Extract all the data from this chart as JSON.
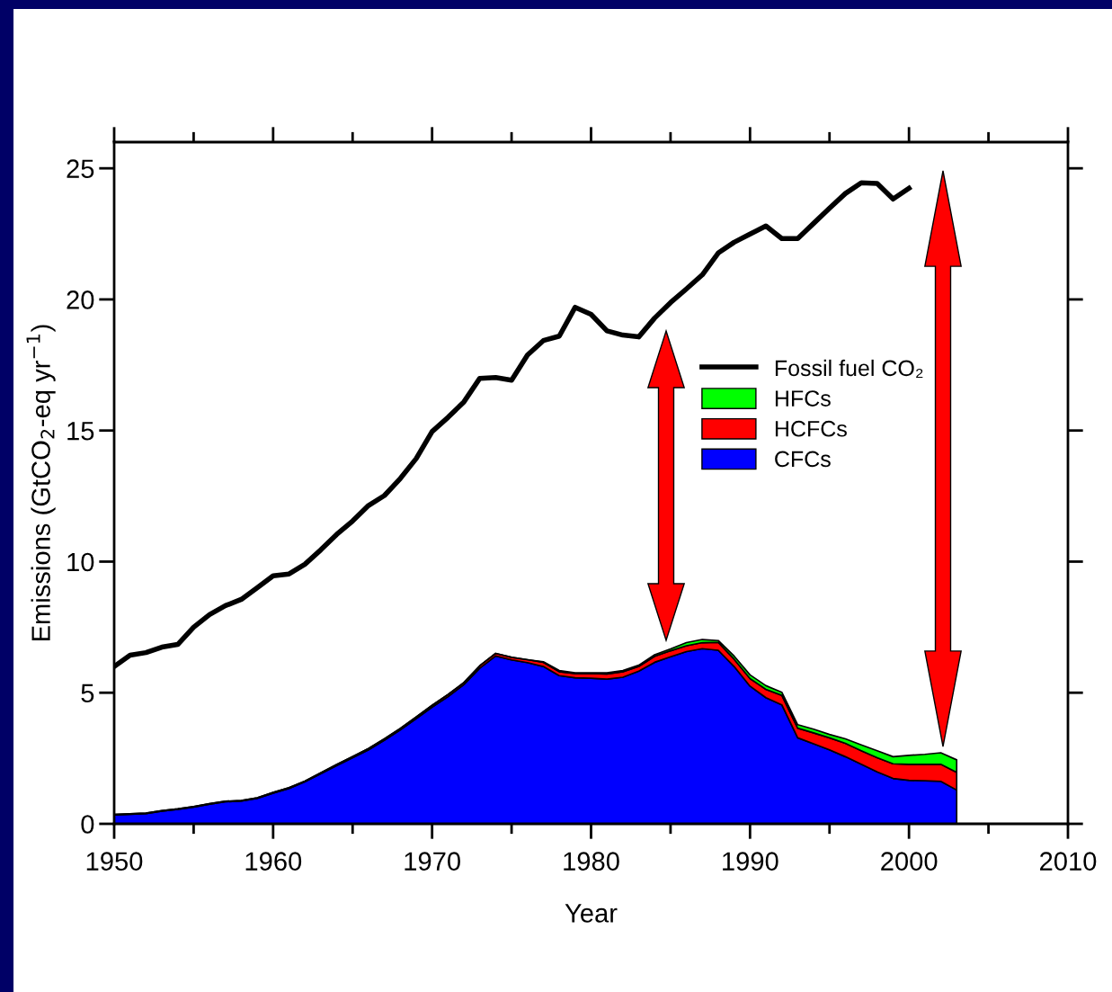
{
  "chart_data": {
    "type": "area",
    "stacked": true,
    "xlabel": "Year",
    "ylabel": "Emissions (GtCO$_{2}$-eq yr$^{−1}$)",
    "xlim": [
      1950,
      2010
    ],
    "xticks": [
      1950,
      1960,
      1970,
      1980,
      1990,
      2000,
      2010
    ],
    "ylim": [
      0,
      26
    ],
    "yticks": [
      0,
      5,
      10,
      15,
      20,
      25
    ],
    "grid": false,
    "legend": "center right",
    "series": [
      {
        "name": "CFCs",
        "color": "#0000ff",
        "x": [
          1950,
          1951,
          1952,
          1953,
          1954,
          1955,
          1956,
          1957,
          1958,
          1959,
          1960,
          1961,
          1962,
          1963,
          1964,
          1965,
          1966,
          1967,
          1968,
          1969,
          1970,
          1971,
          1972,
          1973,
          1974,
          1975,
          1976,
          1977,
          1978,
          1979,
          1980,
          1981,
          1982,
          1983,
          1984,
          1985,
          1986,
          1987,
          1988,
          1989,
          1990,
          1991,
          1992,
          1993,
          1994,
          1995,
          1996,
          1997,
          1998,
          1999,
          2000,
          2001,
          2002,
          2003
        ],
        "values": [
          0.34,
          0.36,
          0.39,
          0.48,
          0.55,
          0.64,
          0.75,
          0.84,
          0.87,
          0.97,
          1.17,
          1.35,
          1.6,
          1.91,
          2.22,
          2.52,
          2.82,
          3.19,
          3.58,
          4.01,
          4.45,
          4.85,
          5.31,
          5.94,
          6.4,
          6.25,
          6.15,
          6.0,
          5.65,
          5.57,
          5.55,
          5.52,
          5.59,
          5.82,
          6.16,
          6.37,
          6.57,
          6.68,
          6.62,
          6.0,
          5.25,
          4.81,
          4.54,
          3.28,
          3.05,
          2.82,
          2.56,
          2.27,
          1.98,
          1.73,
          1.66,
          1.64,
          1.62,
          1.29
        ]
      },
      {
        "name": "HCFCs",
        "color": "#ff0000",
        "x": [
          1950,
          1951,
          1952,
          1953,
          1954,
          1955,
          1956,
          1957,
          1958,
          1959,
          1960,
          1961,
          1962,
          1963,
          1964,
          1965,
          1966,
          1967,
          1968,
          1969,
          1970,
          1971,
          1972,
          1973,
          1974,
          1975,
          1976,
          1977,
          1978,
          1979,
          1980,
          1981,
          1982,
          1983,
          1984,
          1985,
          1986,
          1987,
          1988,
          1989,
          1990,
          1991,
          1992,
          1993,
          1994,
          1995,
          1996,
          1997,
          1998,
          1999,
          2000,
          2001,
          2002,
          2003
        ],
        "values": [
          0.02,
          0.02,
          0.02,
          0.02,
          0.02,
          0.02,
          0.02,
          0.02,
          0.02,
          0.02,
          0.03,
          0.03,
          0.03,
          0.04,
          0.04,
          0.04,
          0.05,
          0.05,
          0.06,
          0.07,
          0.07,
          0.08,
          0.08,
          0.09,
          0.1,
          0.1,
          0.11,
          0.16,
          0.15,
          0.16,
          0.18,
          0.19,
          0.21,
          0.18,
          0.23,
          0.23,
          0.22,
          0.23,
          0.3,
          0.28,
          0.29,
          0.32,
          0.36,
          0.37,
          0.42,
          0.46,
          0.51,
          0.52,
          0.54,
          0.56,
          0.61,
          0.63,
          0.65,
          0.67
        ]
      },
      {
        "name": "HFCs",
        "color": "#00ff00",
        "x": [
          1950,
          1951,
          1952,
          1953,
          1954,
          1955,
          1956,
          1957,
          1958,
          1959,
          1960,
          1961,
          1962,
          1963,
          1964,
          1965,
          1966,
          1967,
          1968,
          1969,
          1970,
          1971,
          1972,
          1973,
          1974,
          1975,
          1976,
          1977,
          1978,
          1979,
          1980,
          1981,
          1982,
          1983,
          1984,
          1985,
          1986,
          1987,
          1988,
          1989,
          1990,
          1991,
          1992,
          1993,
          1994,
          1995,
          1996,
          1997,
          1998,
          1999,
          2000,
          2001,
          2002,
          2003
        ],
        "values": [
          0,
          0,
          0,
          0,
          0,
          0,
          0,
          0,
          0,
          0,
          0,
          0,
          0,
          0,
          0,
          0,
          0,
          0,
          0,
          0,
          0,
          0,
          0,
          0,
          0,
          0,
          0,
          0.02,
          0.05,
          0.03,
          0.03,
          0.05,
          0.05,
          0.05,
          0.06,
          0.07,
          0.12,
          0.12,
          0.07,
          0.12,
          0.14,
          0.14,
          0.12,
          0.13,
          0.14,
          0.13,
          0.17,
          0.22,
          0.27,
          0.27,
          0.34,
          0.38,
          0.44,
          0.48
        ]
      },
      {
        "name": "Fossil fuel CO₂",
        "type": "line",
        "color": "#000000",
        "line_style": "solid",
        "marker": "none",
        "x": [
          1950,
          1951,
          1952,
          1953,
          1954,
          1955,
          1956,
          1957,
          1958,
          1959,
          1960,
          1961,
          1962,
          1963,
          1964,
          1965,
          1966,
          1967,
          1968,
          1969,
          1970,
          1971,
          1972,
          1973,
          1974,
          1975,
          1976,
          1977,
          1978,
          1979,
          1980,
          1981,
          1982,
          1983,
          1984,
          1985,
          1986,
          1987,
          1988,
          1989,
          1990,
          1991,
          1992,
          1993,
          1994,
          1995,
          1996,
          1997,
          1998,
          1999,
          2000
        ],
        "values": [
          6.0,
          6.43,
          6.53,
          6.74,
          6.84,
          7.5,
          7.98,
          8.32,
          8.56,
          9.0,
          9.46,
          9.53,
          9.9,
          10.45,
          11.04,
          11.55,
          12.14,
          12.52,
          13.17,
          13.93,
          14.96,
          15.5,
          16.09,
          16.99,
          17.02,
          16.92,
          17.88,
          18.43,
          18.6,
          19.7,
          19.43,
          18.8,
          18.64,
          18.57,
          19.29,
          19.88,
          20.4,
          20.94,
          21.77,
          22.18,
          22.49,
          22.8,
          22.32,
          22.32,
          22.9,
          23.48,
          24.04,
          24.45,
          24.42,
          23.83,
          24.24
        ]
      }
    ]
  }
}
